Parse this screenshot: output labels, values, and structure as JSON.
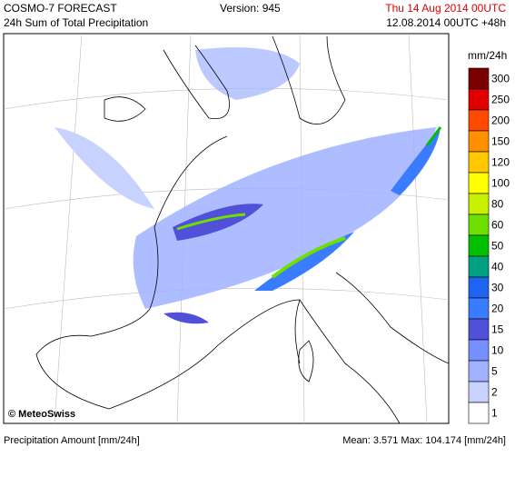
{
  "header": {
    "title": "COSMO-7 FORECAST",
    "subtitle": "24h Sum of Total Precipitation",
    "version": "Version: 945",
    "valid_time": "Thu 14 Aug 2014 00UTC",
    "run_time": "12.08.2014 00UTC +48h"
  },
  "map": {
    "credit": "© MeteoSwiss"
  },
  "legend": {
    "unit": "mm/24h",
    "items": [
      {
        "label": "300",
        "color": "#7a0000"
      },
      {
        "label": "250",
        "color": "#e00000"
      },
      {
        "label": "200",
        "color": "#ff4a00"
      },
      {
        "label": "150",
        "color": "#ff9000"
      },
      {
        "label": "120",
        "color": "#ffc800"
      },
      {
        "label": "100",
        "color": "#ffff00"
      },
      {
        "label": "80",
        "color": "#c8f000"
      },
      {
        "label": "60",
        "color": "#6ee000"
      },
      {
        "label": "50",
        "color": "#00c000"
      },
      {
        "label": "40",
        "color": "#00a080"
      },
      {
        "label": "30",
        "color": "#1e64f0"
      },
      {
        "label": "20",
        "color": "#3a7cff"
      },
      {
        "label": "15",
        "color": "#5050d8"
      },
      {
        "label": "10",
        "color": "#7890ff"
      },
      {
        "label": "5",
        "color": "#a0b2ff"
      },
      {
        "label": "2",
        "color": "#c8d2ff"
      },
      {
        "label": "1",
        "color": "#ffffff"
      }
    ]
  },
  "footer": {
    "left": "Precipitation Amount [mm/24h]",
    "right": "Mean:  3.571 Max: 104.174 [mm/24h]"
  }
}
